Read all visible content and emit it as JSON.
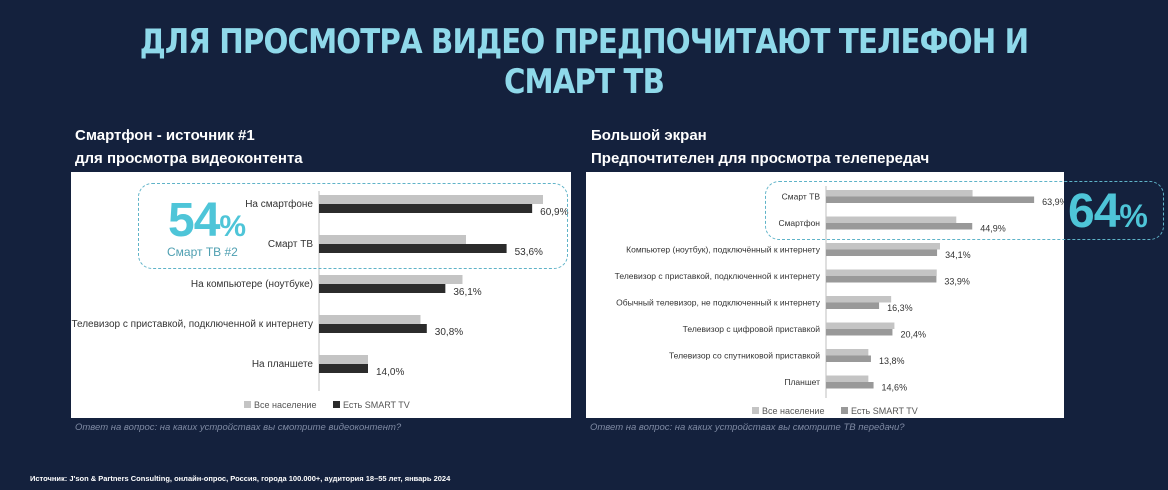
{
  "title": "ДЛЯ ПРОСМОТРА ВИДЕО ПРЕДПОЧИТАЮТ ТЕЛЕФОН И СМАРТ ТВ",
  "left": {
    "subtitle_line1": "Смартфон - источник #1",
    "subtitle_line2": "для просмотра видеоконтента",
    "highlight_value": "54",
    "highlight_percent": "%",
    "highlight_caption": "Смарт ТВ #2",
    "question": "Ответ на вопрос: на каких устройствах вы смотрите видеоконтент?"
  },
  "right": {
    "subtitle_line1": "Большой экран",
    "subtitle_line2": "Предпочтителен для просмотра телепередач",
    "highlight_value": "64",
    "highlight_percent": "%",
    "question": "Ответ на вопрос: на каких устройствах вы смотрите ТВ передачи?"
  },
  "source": "Источник: J'son & Partners Consulting, онлайн-опрос, Россия, города 100.000+, аудитория 18–55 лет, январь 2024",
  "colors": {
    "all_population": "#c4c4c4",
    "smart_tv_left": "#2b2b2b",
    "smart_tv_right": "#999999",
    "accent": "#4ec5d8"
  },
  "chart_data": [
    {
      "type": "bar",
      "orientation": "horizontal",
      "categories": [
        "На смартфоне",
        "Смарт ТВ",
        "На компьютере (ноутбуке)",
        "Телевизор с приставкой, подключенной к интернету",
        "На планшете"
      ],
      "series": [
        {
          "name": "Все население",
          "values": [
            64.0,
            42.0,
            41.0,
            29.0,
            14.0
          ]
        },
        {
          "name": "Есть SMART TV",
          "values": [
            60.9,
            53.6,
            36.1,
            30.8,
            14.0
          ]
        }
      ],
      "data_labels": [
        "60,9%",
        "53,6%",
        "36,1%",
        "30,8%",
        "14,0%"
      ],
      "legend": [
        "Все население",
        "Есть SMART TV"
      ],
      "legend_position": "bottom",
      "xlim": [
        0,
        70
      ],
      "grid": false
    },
    {
      "type": "bar",
      "orientation": "horizontal",
      "categories": [
        "Смарт ТВ",
        "Смартфон",
        "Компьютер (ноутбук), подключённый к интернету",
        "Телевизор с приставкой, подключенной к интернету",
        "Обычный телевизор, не подключенный к интернету",
        "Телевизор с цифровой приставкой",
        "Телевизор со спутниковой приставкой",
        "Планшет"
      ],
      "series": [
        {
          "name": "Все население",
          "values": [
            45.0,
            40.0,
            35.0,
            34.0,
            20.0,
            21.0,
            13.0,
            13.0
          ]
        },
        {
          "name": "Есть SMART TV",
          "values": [
            63.9,
            44.9,
            34.1,
            33.9,
            16.3,
            20.4,
            13.8,
            14.6
          ]
        }
      ],
      "data_labels": [
        "63,9%",
        "44,9%",
        "34,1%",
        "33,9%",
        "16,3%",
        "20,4%",
        "13,8%",
        "14,6%"
      ],
      "legend": [
        "Все население",
        "Есть SMART TV"
      ],
      "legend_position": "bottom",
      "xlim": [
        0,
        70
      ],
      "grid": false
    }
  ]
}
